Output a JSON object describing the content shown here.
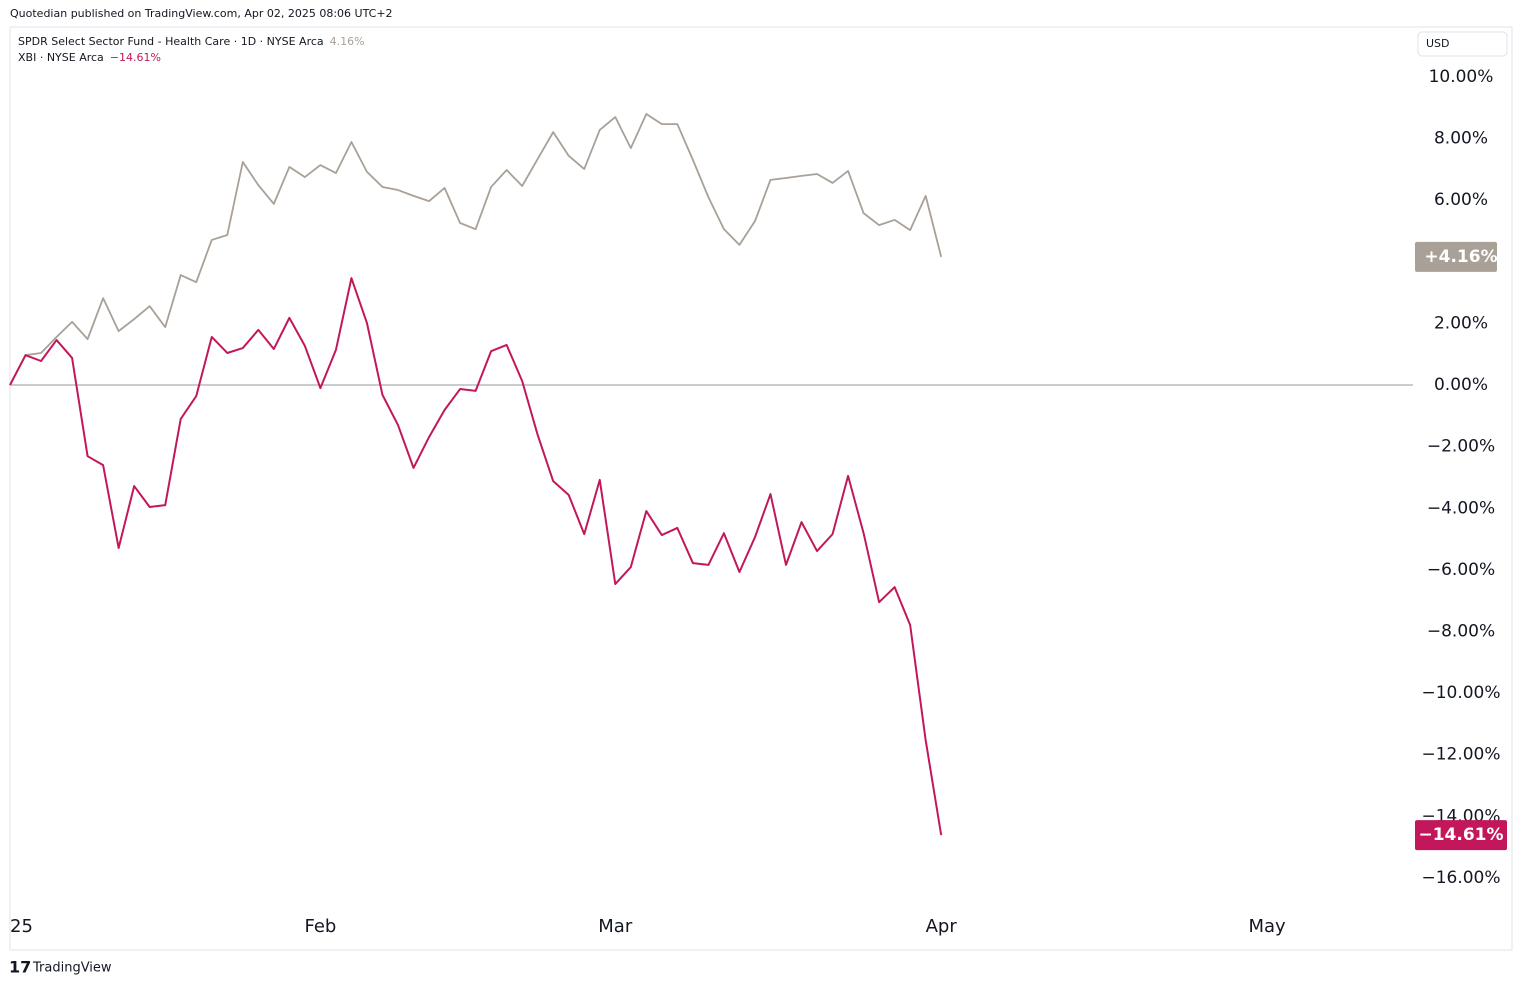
{
  "header": {
    "published": "Quotedian published on TradingView.com, Apr 02, 2025 08:06 UTC+2"
  },
  "footer": {
    "brand": "TradingView"
  },
  "chart_data": {
    "type": "line",
    "currency": "USD",
    "categories": [
      "25",
      null,
      null,
      null,
      null,
      null,
      null,
      null,
      null,
      null,
      null,
      null,
      null,
      null,
      null,
      null,
      null,
      null,
      null,
      null,
      "Feb",
      null,
      null,
      null,
      null,
      null,
      null,
      null,
      null,
      null,
      null,
      null,
      null,
      null,
      null,
      null,
      null,
      null,
      null,
      "Mar",
      null,
      null,
      null,
      null,
      null,
      null,
      null,
      null,
      null,
      null,
      null,
      null,
      null,
      null,
      null,
      null,
      null,
      null,
      null,
      null,
      "Apr",
      null,
      null,
      null,
      null,
      null,
      null,
      null,
      null,
      null,
      null,
      null,
      null,
      null,
      null,
      null,
      null,
      null,
      null,
      null,
      null,
      "May",
      null,
      null,
      null,
      null,
      null,
      null,
      null,
      null,
      null
    ],
    "series": [
      {
        "name": "SPDR Select Sector Fund - Health Care · 1D · NYSE Arca",
        "color": "#a9a097",
        "legend_label": "4.16%",
        "last_label": "+4.16%",
        "values": [
          0,
          0.97,
          1.04,
          1.56,
          2.05,
          1.49,
          2.82,
          1.75,
          2.14,
          2.56,
          1.88,
          3.57,
          3.34,
          4.71,
          4.87,
          7.24,
          6.49,
          5.88,
          7.08,
          6.75,
          7.14,
          6.88,
          7.89,
          6.92,
          6.43,
          6.33,
          6.14,
          5.97,
          6.4,
          5.26,
          5.06,
          6.43,
          6.98,
          6.46,
          7.34,
          8.21,
          7.44,
          7.01,
          8.28,
          8.7,
          7.69,
          8.8,
          8.47,
          8.47,
          7.31,
          6.1,
          5.06,
          4.55,
          5.32,
          6.66,
          6.72,
          6.79,
          6.85,
          6.56,
          6.95,
          5.58,
          5.19,
          5.36,
          5.03,
          6.14,
          4.16,
          null,
          null,
          null,
          null,
          null,
          null,
          null,
          null,
          null,
          null,
          null,
          null,
          null,
          null,
          null,
          null,
          null,
          null,
          null,
          null,
          null,
          null,
          null,
          null,
          null,
          null,
          null,
          null,
          null,
          null
        ]
      },
      {
        "name": "XBI · NYSE Arca",
        "color": "#c2185b",
        "legend_label": "−14.61%",
        "last_label": "−14.61%",
        "values": [
          0,
          0.97,
          0.78,
          1.46,
          0.88,
          -2.31,
          -2.6,
          -5.29,
          -3.28,
          -3.96,
          -3.9,
          -1.1,
          -0.36,
          1.56,
          1.04,
          1.2,
          1.79,
          1.17,
          2.18,
          1.27,
          -0.1,
          1.14,
          3.47,
          2.01,
          -0.32,
          -1.3,
          -2.69,
          -1.69,
          -0.81,
          -0.13,
          -0.19,
          1.1,
          1.3,
          0.13,
          -1.62,
          -3.12,
          -3.57,
          -4.84,
          -3.08,
          -6.46,
          -5.91,
          -4.09,
          -4.87,
          -4.64,
          -5.78,
          -5.84,
          -4.81,
          -6.07,
          -4.94,
          -3.54,
          -5.84,
          -4.45,
          -5.39,
          -4.84,
          -2.95,
          -4.81,
          -7.05,
          -6.56,
          -7.79,
          -11.53,
          -14.61,
          null,
          null,
          null,
          null,
          null,
          null,
          null,
          null,
          null,
          null,
          null,
          null,
          null,
          null,
          null,
          null,
          null,
          null,
          null,
          null,
          null,
          null,
          null,
          null,
          null,
          null,
          null,
          null,
          null,
          null
        ]
      }
    ],
    "ylim": [
      -18.34,
      11.59
    ],
    "yticks": [
      {
        "value": 10,
        "label": "10.00%"
      },
      {
        "value": 8,
        "label": "8.00%"
      },
      {
        "value": 6,
        "label": "6.00%"
      },
      {
        "value": 2,
        "label": "2.00%"
      },
      {
        "value": 0,
        "label": "0.00%"
      },
      {
        "value": -2,
        "label": "−2.00%"
      },
      {
        "value": -4,
        "label": "−4.00%"
      },
      {
        "value": -6,
        "label": "−6.00%"
      },
      {
        "value": -8,
        "label": "−8.00%"
      },
      {
        "value": -10,
        "label": "−10.00%"
      },
      {
        "value": -12,
        "label": "−12.00%"
      },
      {
        "value": -14,
        "label": "−14.00%"
      },
      {
        "value": -16,
        "label": "−16.00%"
      }
    ],
    "zero_line": 0
  }
}
